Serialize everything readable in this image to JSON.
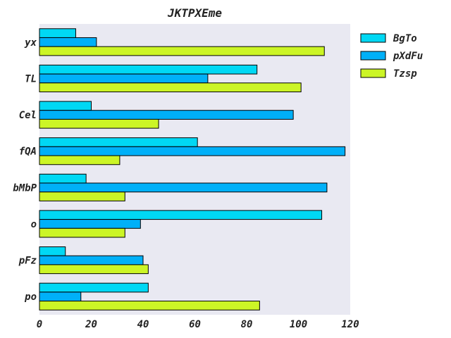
{
  "chart_data": {
    "type": "bar",
    "orientation": "horizontal",
    "title": "JKTPXEme",
    "xlabel": "",
    "ylabel": "",
    "xlim": [
      0,
      120
    ],
    "x_ticks": [
      0,
      20,
      40,
      60,
      80,
      100,
      120
    ],
    "grid": false,
    "legend_position": "top-right",
    "categories": [
      "yx",
      "TL",
      "Cel",
      "fQA",
      "bMbP",
      "o",
      "pFz",
      "po"
    ],
    "series": [
      {
        "name": "BgTo",
        "color": "#00d8f4",
        "values": [
          14,
          84,
          20,
          61,
          18,
          109,
          10,
          42
        ]
      },
      {
        "name": "pXdFu",
        "color": "#00b0f8",
        "values": [
          22,
          65,
          98,
          118,
          111,
          39,
          40,
          16
        ]
      },
      {
        "name": "Tzsp",
        "color": "#ccf526",
        "values": [
          110,
          101,
          46,
          31,
          33,
          33,
          42,
          85
        ]
      }
    ],
    "plot_background": "#e9e9f2"
  }
}
